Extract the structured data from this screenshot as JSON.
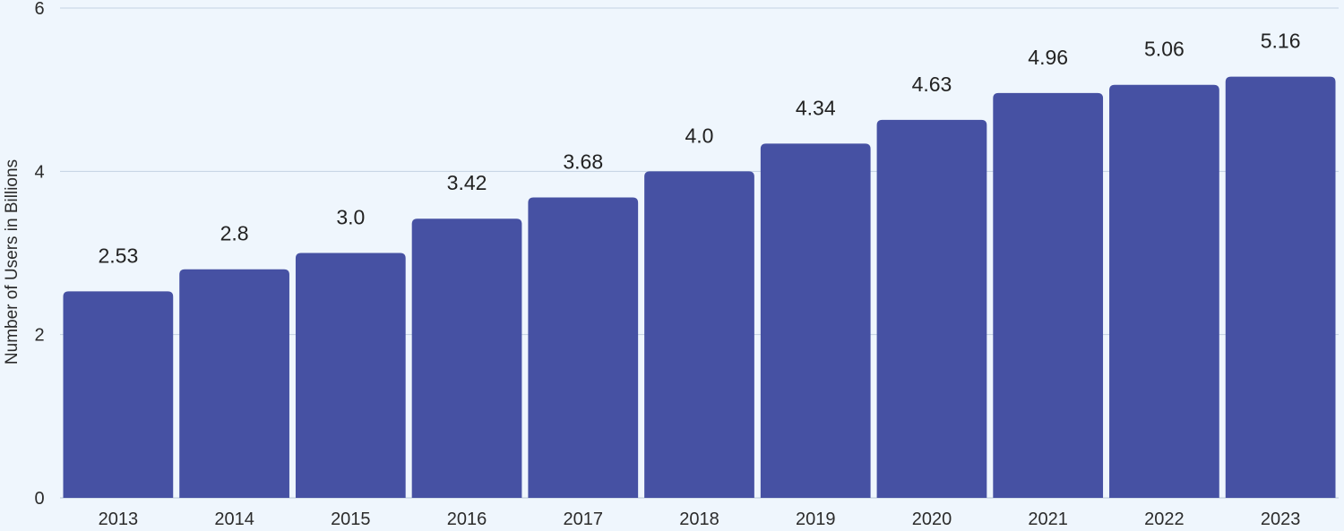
{
  "chart_data": {
    "type": "bar",
    "title": "",
    "xlabel": "",
    "ylabel": "Number of Users in Billions",
    "categories": [
      "2013",
      "2014",
      "2015",
      "2016",
      "2017",
      "2018",
      "2019",
      "2020",
      "2021",
      "2022",
      "2023"
    ],
    "values": [
      2.53,
      2.8,
      3.0,
      3.42,
      3.68,
      4.0,
      4.34,
      4.63,
      4.96,
      5.06,
      5.16
    ],
    "value_labels": [
      "2.53",
      "2.8",
      "3.0",
      "3.42",
      "3.68",
      "4.0",
      "4.34",
      "4.63",
      "4.96",
      "5.06",
      "5.16"
    ],
    "ylim": [
      0,
      6
    ],
    "yticks": [
      0,
      2,
      4,
      6
    ],
    "ytick_labels": [
      "0",
      "2",
      "4",
      "6"
    ],
    "grid": true,
    "legend": "none",
    "colors": {
      "bar": "#4651a3",
      "background": "#eff6fd",
      "gridline": "#c3d2e2"
    }
  }
}
